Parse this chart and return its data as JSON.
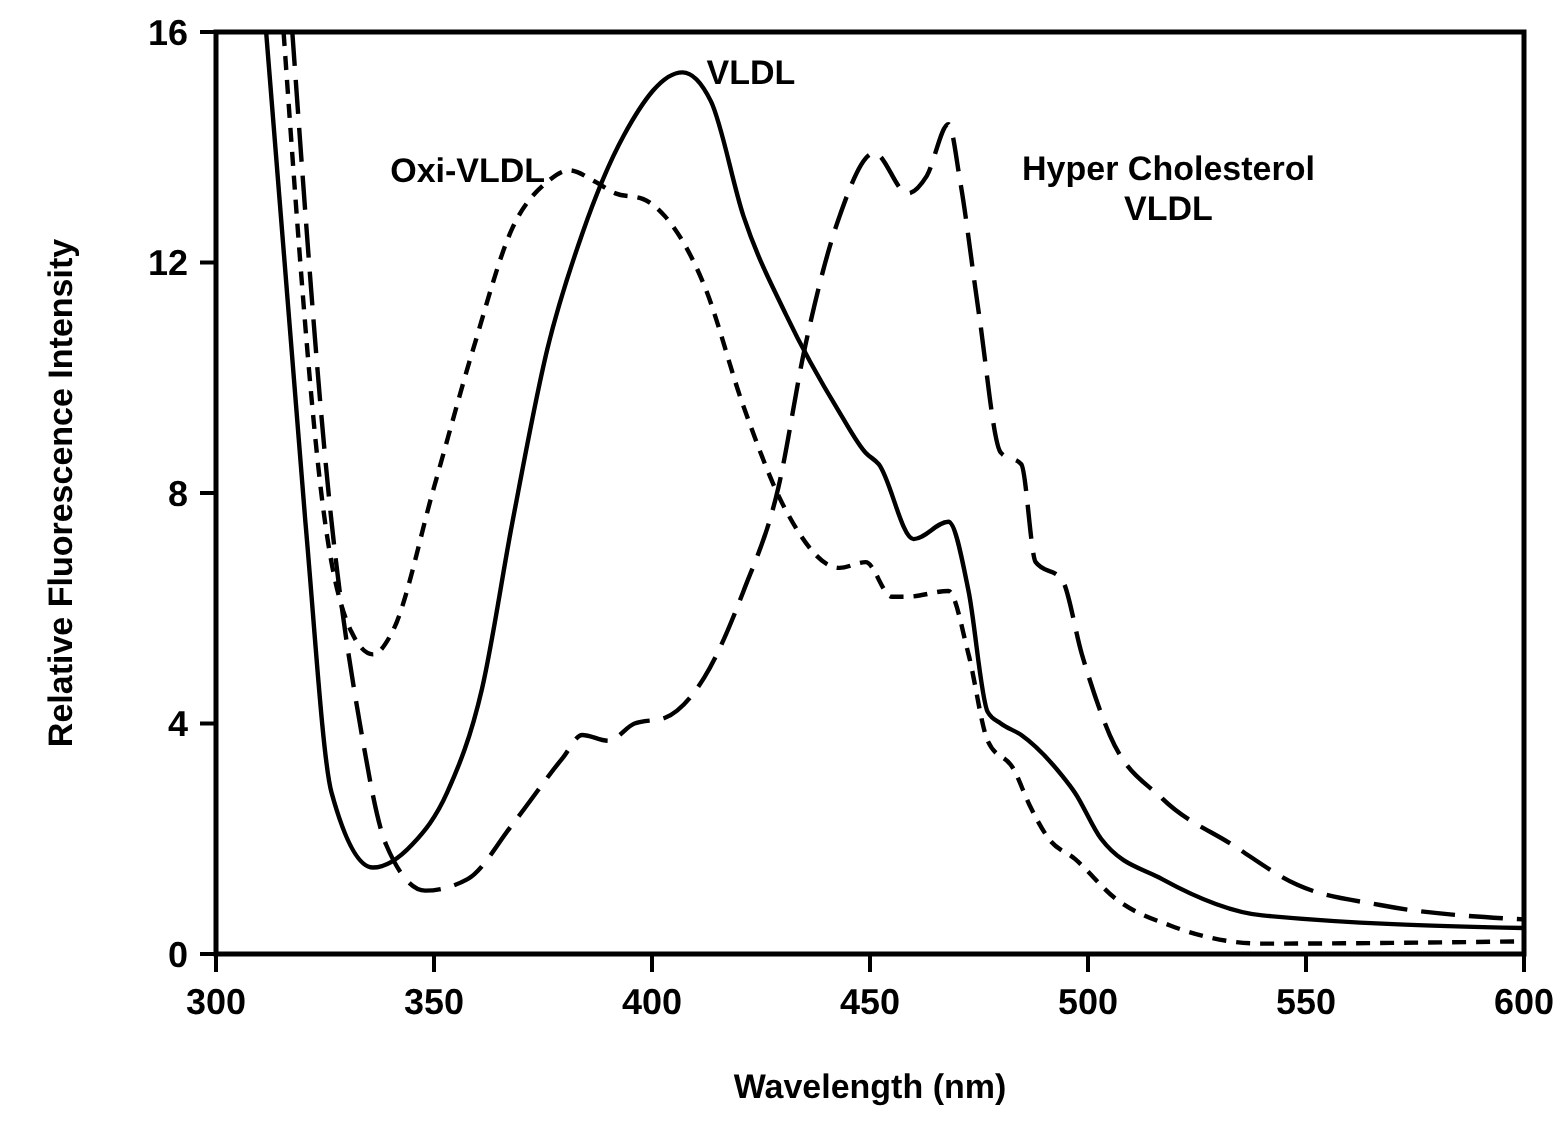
{
  "chart_data": {
    "type": "line",
    "xlabel": "Wavelength (nm)",
    "ylabel": "Relative Fluorescence Intensity",
    "xlim": [
      300,
      600
    ],
    "ylim": [
      0,
      16
    ],
    "xticks": [
      300,
      350,
      400,
      450,
      500,
      550,
      600
    ],
    "yticks": [
      0,
      4,
      8,
      12,
      16
    ],
    "grid": false,
    "series": [
      {
        "name": "VLDL",
        "color": "#000000",
        "line_style": "solid",
        "x": [
          311.5,
          320.5,
          326.5,
          336,
          345,
          353,
          361,
          368,
          376,
          384,
          393.5,
          407,
          413.5,
          421,
          430.7,
          443,
          449,
          452,
          460,
          468,
          472.6,
          477,
          480,
          484.7,
          494,
          497,
          503,
          517,
          540,
          600
        ],
        "values": [
          16,
          7.5,
          2.8,
          1.5,
          1.9,
          2.8,
          4.6,
          7.5,
          10.5,
          12.5,
          14.2,
          15.3,
          14.8,
          12.8,
          11.1,
          9.4,
          8.7,
          8.5,
          7.2,
          7.5,
          6.3,
          4.2,
          4.0,
          3.8,
          3.1,
          2.8,
          2.0,
          1.3,
          0.67,
          0.45
        ]
      },
      {
        "name": "Oxi-VLDL",
        "color": "#000000",
        "line_style": "dashed",
        "x": [
          315.5,
          325,
          331,
          336,
          340.5,
          350,
          359,
          368,
          376,
          381,
          387,
          391.6,
          398,
          403,
          412,
          421,
          430.7,
          443,
          449,
          455,
          458.6,
          468,
          472.6,
          477,
          483,
          486.5,
          491,
          497,
          506.5,
          519,
          540,
          600
        ],
        "values": [
          16,
          7.5,
          5.6,
          5.2,
          5.6,
          8.1,
          10.5,
          12.6,
          13.4,
          13.6,
          13.4,
          13.2,
          13.1,
          12.8,
          11.6,
          9.5,
          7.7,
          6.7,
          6.8,
          6.2,
          6.2,
          6.3,
          5.2,
          3.7,
          3.2,
          2.6,
          2.0,
          1.65,
          0.95,
          0.49,
          0.18,
          0.22
        ]
      },
      {
        "name": "Hyper Cholesterol VLDL",
        "color": "#000000",
        "line_style": "dashed",
        "x": [
          317.5,
          326.5,
          333,
          339,
          348,
          357.7,
          368,
          379.5,
          384,
          390,
          396,
          403,
          412,
          421,
          429,
          435,
          443,
          451,
          458.6,
          463,
          468,
          470.7,
          475,
          480,
          484.7,
          488,
          494,
          498.6,
          505,
          517,
          533,
          548,
          567,
          600
        ],
        "values": [
          16,
          7.5,
          4.0,
          1.9,
          1.1,
          1.3,
          2.25,
          3.4,
          3.8,
          3.7,
          4.0,
          4.1,
          4.8,
          6.3,
          8.1,
          10.5,
          12.8,
          13.9,
          13.2,
          13.5,
          14.4,
          13.4,
          11.1,
          8.7,
          8.5,
          6.8,
          6.5,
          5.2,
          3.8,
          2.7,
          1.9,
          1.2,
          0.85,
          0.6
        ]
      }
    ]
  }
}
